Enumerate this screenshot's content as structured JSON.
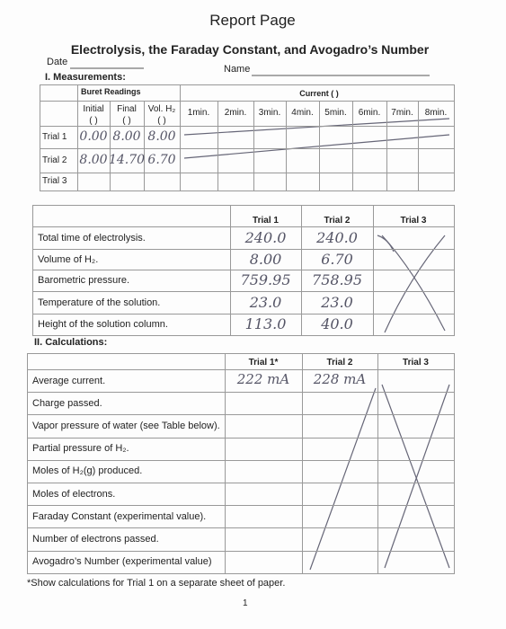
{
  "header": {
    "title": "Report Page",
    "subtitle": "Electrolysis, the Faraday Constant, and Avogadro’s Number"
  },
  "fields": {
    "date": "Date",
    "name": "Name"
  },
  "measurements": {
    "heading": "I. Measurements:",
    "buret_header": "Buret Readings",
    "current_header": "Current (   )",
    "columns": [
      "Initial",
      "Final",
      "Vol. H₂",
      "1min.",
      "2min.",
      "3min.",
      "4min.",
      "5min.",
      "6min.",
      "7min.",
      "8min."
    ],
    "units": [
      "(   )",
      "(   )",
      "(   )"
    ],
    "rows": [
      {
        "label": "Trial 1",
        "values": [
          "0.00",
          "8.00",
          "8.00"
        ]
      },
      {
        "label": "Trial 2",
        "values": [
          "8.00",
          "14.70",
          "6.70"
        ]
      },
      {
        "label": "Trial 3",
        "values": []
      }
    ]
  },
  "data_table": {
    "columns": [
      "Trial 1",
      "Trial 2",
      "Trial 3"
    ],
    "rows": [
      {
        "label": "Total time of electrolysis.",
        "values": [
          "240.0",
          "240.0"
        ]
      },
      {
        "label": "Volume of H₂.",
        "values": [
          "8.00",
          "6.70"
        ]
      },
      {
        "label": "Barometric pressure.",
        "values": [
          "759.95",
          "758.95"
        ]
      },
      {
        "label": "Temperature of the solution.",
        "values": [
          "23.0",
          "23.0"
        ]
      },
      {
        "label": "Height of the solution column.",
        "values": [
          "113.0",
          "40.0"
        ]
      }
    ]
  },
  "calculations": {
    "heading": "II. Calculations:",
    "columns": [
      "Trial 1*",
      "Trial 2",
      "Trial 3"
    ],
    "rows": [
      {
        "label": "Average current.",
        "values": [
          "222 mA",
          "228 mA"
        ]
      },
      {
        "label": "Charge passed.",
        "values": []
      },
      {
        "label": "Vapor pressure of water (see Table below).",
        "values": []
      },
      {
        "label": "Partial pressure of H₂.",
        "values": []
      },
      {
        "label": "Moles of H₂(g) produced.",
        "values": []
      },
      {
        "label": "Moles of electrons.",
        "values": []
      },
      {
        "label": "Faraday Constant (experimental value).",
        "values": []
      },
      {
        "label": "Number of electrons passed.",
        "values": []
      },
      {
        "label": "Avogadro’s Number (experimental value)",
        "values": []
      }
    ]
  },
  "footnote": "*Show calculations for Trial 1 on a separate sheet of paper.",
  "page_number": "1"
}
